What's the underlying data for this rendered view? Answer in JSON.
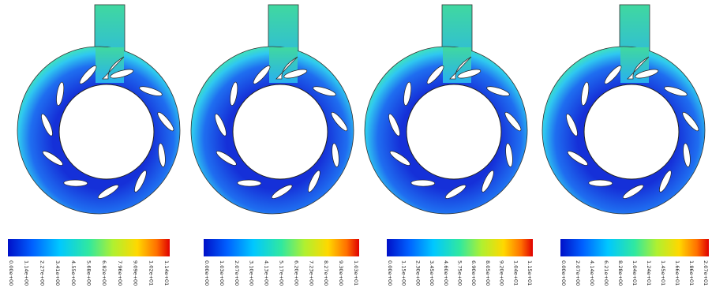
{
  "panels": [
    {
      "colorbar_labels": [
        "0.00e+00",
        "1.14e+00",
        "2.27e+00",
        "3.41e+00",
        "4.55e+00",
        "5.68e+00",
        "6.82e+00",
        "7.96e+00",
        "9.09e+00",
        "1.02e+01",
        "1.14e+01"
      ]
    },
    {
      "colorbar_labels": [
        "0.00e+00",
        "1.03e+00",
        "2.07e+00",
        "3.10e+00",
        "4.13e+00",
        "5.17e+00",
        "6.20e+00",
        "7.23e+00",
        "8.27e+00",
        "9.30e+00",
        "1.03e+01"
      ]
    },
    {
      "colorbar_labels": [
        "0.00e+00",
        "1.15e+00",
        "2.30e+00",
        "3.45e+00",
        "4.60e+00",
        "5.75e+00",
        "6.90e+00",
        "8.05e+00",
        "9.20e+00",
        "1.04e+01",
        "1.15e+01"
      ]
    },
    {
      "colorbar_labels": [
        "0.00e+00",
        "2.07e+00",
        "4.14e+00",
        "6.21e+00",
        "8.28e+00",
        "1.04e+01",
        "1.24e+01",
        "1.45e+01",
        "1.66e+01",
        "1.86e+01",
        "2.07e+01"
      ]
    }
  ]
}
